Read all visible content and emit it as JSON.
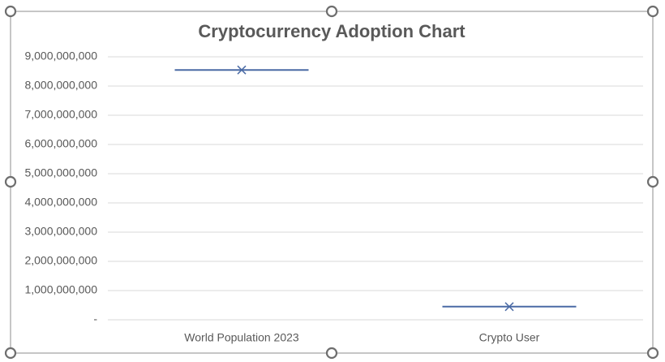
{
  "chart_data": {
    "type": "box",
    "title": "Cryptocurrency Adoption Chart",
    "categories": [
      "World Population 2023",
      "Crypto User"
    ],
    "values": [
      8550000000,
      450000000
    ],
    "color": "#4a6aa5",
    "ylim": [
      0,
      9000000000
    ],
    "yticks": [
      {
        "value": 0,
        "label": "-"
      },
      {
        "value": 1000000000,
        "label": "1,000,000,000"
      },
      {
        "value": 2000000000,
        "label": "2,000,000,000"
      },
      {
        "value": 3000000000,
        "label": "3,000,000,000"
      },
      {
        "value": 4000000000,
        "label": "4,000,000,000"
      },
      {
        "value": 5000000000,
        "label": "5,000,000,000"
      },
      {
        "value": 6000000000,
        "label": "6,000,000,000"
      },
      {
        "value": 7000000000,
        "label": "7,000,000,000"
      },
      {
        "value": 8000000000,
        "label": "8,000,000,000"
      },
      {
        "value": 9000000000,
        "label": "9,000,000,000"
      }
    ],
    "grid": true
  }
}
